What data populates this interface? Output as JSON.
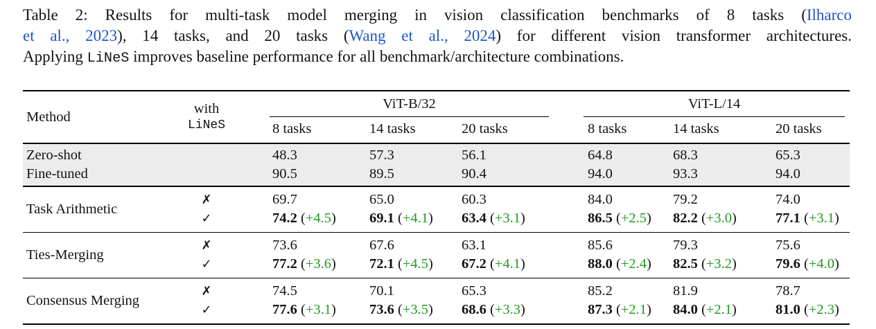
{
  "caption": {
    "lines": [
      {
        "justify": true,
        "segments": [
          {
            "t": "Table 2: Results for multi-task model merging in vision classification benchmarks of 8 tasks (",
            "s": "n"
          },
          {
            "t": "Ilharco",
            "s": "link"
          }
        ]
      },
      {
        "justify": true,
        "segments": [
          {
            "t": "et al., 2023",
            "s": "link"
          },
          {
            "t": "), 14 tasks, and 20 tasks (",
            "s": "n"
          },
          {
            "t": "Wang et al., 2024",
            "s": "link"
          },
          {
            "t": ") for different vision transformer architectures.",
            "s": "n"
          }
        ]
      },
      {
        "justify": false,
        "segments": [
          {
            "t": "Applying ",
            "s": "n"
          },
          {
            "t": "LiNeS",
            "s": "mono"
          },
          {
            "t": " improves baseline performance for all benchmark/architecture combinations.",
            "s": "n"
          }
        ]
      }
    ]
  },
  "table": {
    "header": {
      "method_label": "Method",
      "with_label": "with",
      "lines_label": "LiNeS",
      "groups": [
        {
          "label": "ViT-B/32"
        },
        {
          "label": "ViT-L/14"
        }
      ],
      "subcolumns": [
        "8 tasks",
        "14 tasks",
        "20 tasks",
        "8 tasks",
        "14 tasks",
        "20 tasks"
      ]
    },
    "baseline_rows": [
      {
        "method": "Zero-shot",
        "values": [
          "48.3",
          "57.3",
          "56.1",
          "64.8",
          "68.3",
          "65.3"
        ]
      },
      {
        "method": "Fine-tuned",
        "values": [
          "90.5",
          "89.5",
          "90.4",
          "94.0",
          "93.3",
          "94.0"
        ]
      }
    ],
    "method_groups": [
      {
        "method": "Task Arithmetic",
        "rows": [
          {
            "mark": "✗",
            "cells": [
              {
                "value": "69.7"
              },
              {
                "value": "65.0"
              },
              {
                "value": "60.3"
              },
              {
                "value": "84.0"
              },
              {
                "value": "79.2"
              },
              {
                "value": "74.0"
              }
            ]
          },
          {
            "mark": "✓",
            "cells": [
              {
                "value": "74.2",
                "delta": "+4.5"
              },
              {
                "value": "69.1",
                "delta": "+4.1"
              },
              {
                "value": "63.4",
                "delta": "+3.1"
              },
              {
                "value": "86.5",
                "delta": "+2.5"
              },
              {
                "value": "82.2",
                "delta": "+3.0"
              },
              {
                "value": "77.1",
                "delta": "+3.1"
              }
            ]
          }
        ]
      },
      {
        "method": "Ties-Merging",
        "rows": [
          {
            "mark": "✗",
            "cells": [
              {
                "value": "73.6"
              },
              {
                "value": "67.6"
              },
              {
                "value": "63.1"
              },
              {
                "value": "85.6"
              },
              {
                "value": "79.3"
              },
              {
                "value": "75.6"
              }
            ]
          },
          {
            "mark": "✓",
            "cells": [
              {
                "value": "77.2",
                "delta": "+3.6"
              },
              {
                "value": "72.1",
                "delta": "+4.5"
              },
              {
                "value": "67.2",
                "delta": "+4.1"
              },
              {
                "value": "88.0",
                "delta": "+2.4"
              },
              {
                "value": "82.5",
                "delta": "+3.2"
              },
              {
                "value": "79.6",
                "delta": "+4.0"
              }
            ]
          }
        ]
      },
      {
        "method": "Consensus Merging",
        "rows": [
          {
            "mark": "✗",
            "cells": [
              {
                "value": "74.5"
              },
              {
                "value": "70.1"
              },
              {
                "value": "65.3"
              },
              {
                "value": "85.2"
              },
              {
                "value": "81.9"
              },
              {
                "value": "78.7"
              }
            ]
          },
          {
            "mark": "✓",
            "cells": [
              {
                "value": "77.6",
                "delta": "+3.1"
              },
              {
                "value": "73.6",
                "delta": "+3.5"
              },
              {
                "value": "68.6",
                "delta": "+3.3"
              },
              {
                "value": "87.3",
                "delta": "+2.1"
              },
              {
                "value": "84.0",
                "delta": "+2.1"
              },
              {
                "value": "81.0",
                "delta": "+2.3"
              }
            ]
          }
        ]
      }
    ]
  },
  "colors": {
    "citation_blue": "#1f55c8",
    "delta_green": "#1e9b1e",
    "baseline_row_bg": "#ececec"
  }
}
